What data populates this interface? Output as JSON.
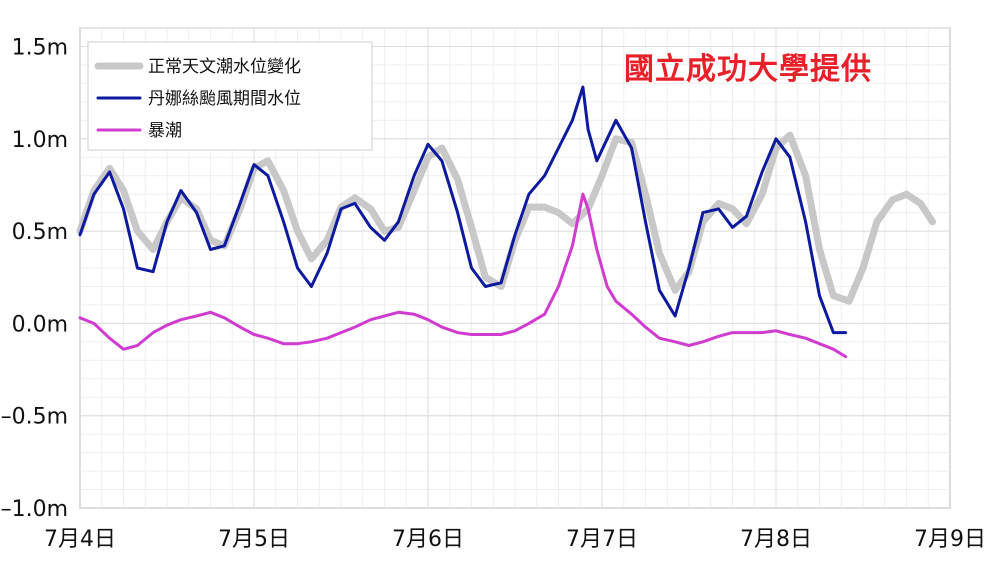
{
  "credit": "國立成功大學提供",
  "chart_data": {
    "type": "line",
    "title": "",
    "xlabel": "",
    "ylabel": "",
    "ylim": [
      -1.0,
      1.6
    ],
    "xlim": [
      0,
      5
    ],
    "grid": true,
    "legend_position": "top-left",
    "y_ticks": [
      {
        "value": 1.5,
        "label": "1.5m"
      },
      {
        "value": 1.0,
        "label": "1.0m"
      },
      {
        "value": 0.5,
        "label": "0.5m"
      },
      {
        "value": 0.0,
        "label": "0.0m"
      },
      {
        "value": -0.5,
        "label": "–0.5m"
      },
      {
        "value": -1.0,
        "label": "–1.0m"
      }
    ],
    "x_ticks": [
      {
        "value": 0,
        "label": "7月4日"
      },
      {
        "value": 1,
        "label": "7月5日"
      },
      {
        "value": 2,
        "label": "7月6日"
      },
      {
        "value": 3,
        "label": "7月7日"
      },
      {
        "value": 4,
        "label": "7月8日"
      },
      {
        "value": 5,
        "label": "7月9日"
      }
    ],
    "series": [
      {
        "name": "正常天文潮水位變化",
        "color": "#c8c8c8",
        "points": [
          [
            0.0,
            0.5
          ],
          [
            0.08,
            0.72
          ],
          [
            0.17,
            0.84
          ],
          [
            0.25,
            0.72
          ],
          [
            0.33,
            0.5
          ],
          [
            0.42,
            0.4
          ],
          [
            0.5,
            0.55
          ],
          [
            0.58,
            0.68
          ],
          [
            0.67,
            0.62
          ],
          [
            0.75,
            0.45
          ],
          [
            0.83,
            0.42
          ],
          [
            0.92,
            0.62
          ],
          [
            1.0,
            0.84
          ],
          [
            1.08,
            0.88
          ],
          [
            1.17,
            0.72
          ],
          [
            1.25,
            0.5
          ],
          [
            1.33,
            0.35
          ],
          [
            1.42,
            0.45
          ],
          [
            1.5,
            0.63
          ],
          [
            1.58,
            0.68
          ],
          [
            1.67,
            0.62
          ],
          [
            1.75,
            0.5
          ],
          [
            1.83,
            0.52
          ],
          [
            1.92,
            0.72
          ],
          [
            2.0,
            0.9
          ],
          [
            2.08,
            0.95
          ],
          [
            2.17,
            0.78
          ],
          [
            2.25,
            0.52
          ],
          [
            2.33,
            0.25
          ],
          [
            2.42,
            0.2
          ],
          [
            2.5,
            0.45
          ],
          [
            2.58,
            0.63
          ],
          [
            2.67,
            0.63
          ],
          [
            2.75,
            0.6
          ],
          [
            2.83,
            0.54
          ],
          [
            2.92,
            0.62
          ],
          [
            3.0,
            0.8
          ],
          [
            3.08,
            1.0
          ],
          [
            3.17,
            0.98
          ],
          [
            3.25,
            0.7
          ],
          [
            3.33,
            0.38
          ],
          [
            3.42,
            0.18
          ],
          [
            3.5,
            0.28
          ],
          [
            3.58,
            0.55
          ],
          [
            3.67,
            0.65
          ],
          [
            3.75,
            0.62
          ],
          [
            3.83,
            0.54
          ],
          [
            3.92,
            0.7
          ],
          [
            4.0,
            0.95
          ],
          [
            4.08,
            1.02
          ],
          [
            4.17,
            0.8
          ],
          [
            4.25,
            0.4
          ],
          [
            4.33,
            0.15
          ],
          [
            4.42,
            0.12
          ],
          [
            4.5,
            0.3
          ],
          [
            4.58,
            0.55
          ],
          [
            4.67,
            0.67
          ],
          [
            4.75,
            0.7
          ],
          [
            4.83,
            0.65
          ],
          [
            4.9,
            0.55
          ]
        ]
      },
      {
        "name": "丹娜絲颱風期間水位",
        "color": "#0d1a9e",
        "points": [
          [
            0.0,
            0.48
          ],
          [
            0.08,
            0.7
          ],
          [
            0.17,
            0.82
          ],
          [
            0.25,
            0.62
          ],
          [
            0.33,
            0.3
          ],
          [
            0.42,
            0.28
          ],
          [
            0.5,
            0.55
          ],
          [
            0.58,
            0.72
          ],
          [
            0.67,
            0.6
          ],
          [
            0.75,
            0.4
          ],
          [
            0.83,
            0.42
          ],
          [
            0.92,
            0.65
          ],
          [
            1.0,
            0.86
          ],
          [
            1.08,
            0.8
          ],
          [
            1.17,
            0.55
          ],
          [
            1.25,
            0.3
          ],
          [
            1.33,
            0.2
          ],
          [
            1.42,
            0.38
          ],
          [
            1.5,
            0.62
          ],
          [
            1.58,
            0.65
          ],
          [
            1.67,
            0.52
          ],
          [
            1.75,
            0.45
          ],
          [
            1.83,
            0.55
          ],
          [
            1.92,
            0.8
          ],
          [
            2.0,
            0.97
          ],
          [
            2.08,
            0.88
          ],
          [
            2.17,
            0.6
          ],
          [
            2.25,
            0.3
          ],
          [
            2.33,
            0.2
          ],
          [
            2.42,
            0.22
          ],
          [
            2.5,
            0.48
          ],
          [
            2.58,
            0.7
          ],
          [
            2.67,
            0.8
          ],
          [
            2.75,
            0.95
          ],
          [
            2.83,
            1.1
          ],
          [
            2.89,
            1.28
          ],
          [
            2.92,
            1.05
          ],
          [
            2.97,
            0.88
          ],
          [
            3.03,
            1.0
          ],
          [
            3.08,
            1.1
          ],
          [
            3.17,
            0.95
          ],
          [
            3.25,
            0.55
          ],
          [
            3.33,
            0.18
          ],
          [
            3.42,
            0.04
          ],
          [
            3.5,
            0.3
          ],
          [
            3.58,
            0.6
          ],
          [
            3.67,
            0.62
          ],
          [
            3.75,
            0.52
          ],
          [
            3.83,
            0.58
          ],
          [
            3.92,
            0.82
          ],
          [
            4.0,
            1.0
          ],
          [
            4.08,
            0.9
          ],
          [
            4.17,
            0.55
          ],
          [
            4.25,
            0.15
          ],
          [
            4.33,
            -0.05
          ],
          [
            4.4,
            -0.05
          ]
        ]
      },
      {
        "name": "暴潮",
        "color": "#d03cd0",
        "points": [
          [
            0.0,
            0.03
          ],
          [
            0.08,
            0.0
          ],
          [
            0.17,
            -0.08
          ],
          [
            0.25,
            -0.14
          ],
          [
            0.33,
            -0.12
          ],
          [
            0.42,
            -0.05
          ],
          [
            0.5,
            -0.01
          ],
          [
            0.58,
            0.02
          ],
          [
            0.67,
            0.04
          ],
          [
            0.75,
            0.06
          ],
          [
            0.83,
            0.03
          ],
          [
            0.92,
            -0.02
          ],
          [
            1.0,
            -0.06
          ],
          [
            1.08,
            -0.08
          ],
          [
            1.17,
            -0.11
          ],
          [
            1.25,
            -0.11
          ],
          [
            1.33,
            -0.1
          ],
          [
            1.42,
            -0.08
          ],
          [
            1.5,
            -0.05
          ],
          [
            1.58,
            -0.02
          ],
          [
            1.67,
            0.02
          ],
          [
            1.75,
            0.04
          ],
          [
            1.83,
            0.06
          ],
          [
            1.92,
            0.05
          ],
          [
            2.0,
            0.02
          ],
          [
            2.08,
            -0.02
          ],
          [
            2.17,
            -0.05
          ],
          [
            2.25,
            -0.06
          ],
          [
            2.33,
            -0.06
          ],
          [
            2.42,
            -0.06
          ],
          [
            2.5,
            -0.04
          ],
          [
            2.58,
            0.0
          ],
          [
            2.67,
            0.05
          ],
          [
            2.75,
            0.2
          ],
          [
            2.83,
            0.42
          ],
          [
            2.89,
            0.7
          ],
          [
            2.92,
            0.62
          ],
          [
            2.97,
            0.4
          ],
          [
            3.03,
            0.2
          ],
          [
            3.08,
            0.12
          ],
          [
            3.17,
            0.05
          ],
          [
            3.25,
            -0.02
          ],
          [
            3.33,
            -0.08
          ],
          [
            3.42,
            -0.1
          ],
          [
            3.5,
            -0.12
          ],
          [
            3.58,
            -0.1
          ],
          [
            3.67,
            -0.07
          ],
          [
            3.75,
            -0.05
          ],
          [
            3.83,
            -0.05
          ],
          [
            3.92,
            -0.05
          ],
          [
            4.0,
            -0.04
          ],
          [
            4.08,
            -0.06
          ],
          [
            4.17,
            -0.08
          ],
          [
            4.25,
            -0.11
          ],
          [
            4.33,
            -0.14
          ],
          [
            4.4,
            -0.18
          ]
        ]
      }
    ]
  }
}
